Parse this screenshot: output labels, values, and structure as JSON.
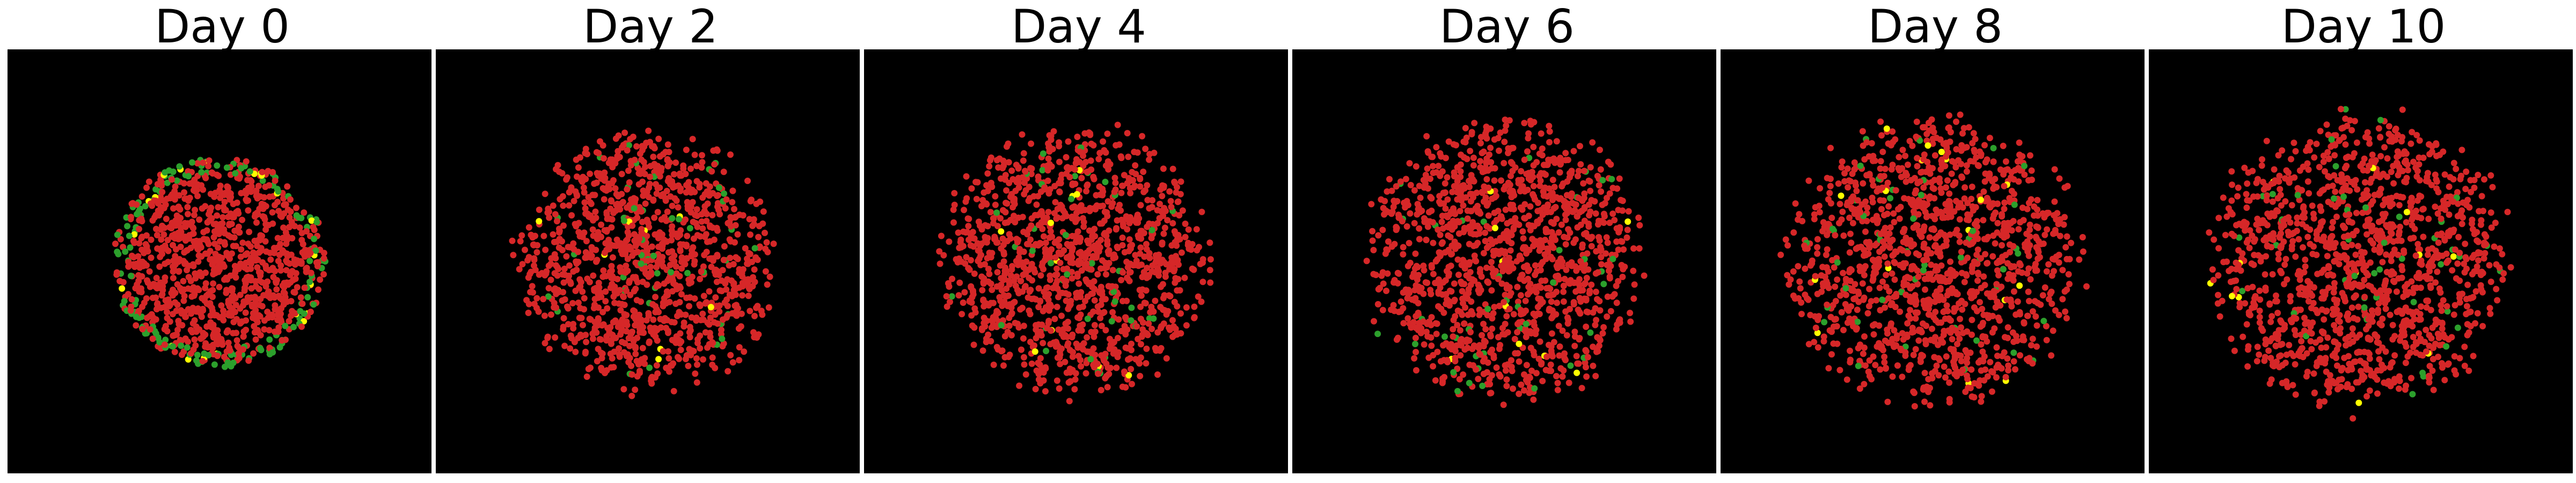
{
  "figure": {
    "panels": [
      {
        "title": "Day 0",
        "cells": 1100,
        "spread": 0.86
      },
      {
        "title": "Day 2",
        "cells": 1200,
        "spread": 0.96
      },
      {
        "title": "Day 4",
        "cells": 1250,
        "spread": 1.0
      },
      {
        "title": "Day 6",
        "cells": 1280,
        "spread": 1.04
      },
      {
        "title": "Day 8",
        "cells": 1300,
        "spread": 1.08
      },
      {
        "title": "Day 10",
        "cells": 1320,
        "spread": 1.1
      }
    ],
    "colors": {
      "background": "#000000",
      "cell_main": "#d62728",
      "cell_green": "#2ca02c",
      "cell_yellow": "#ffff00"
    }
  }
}
